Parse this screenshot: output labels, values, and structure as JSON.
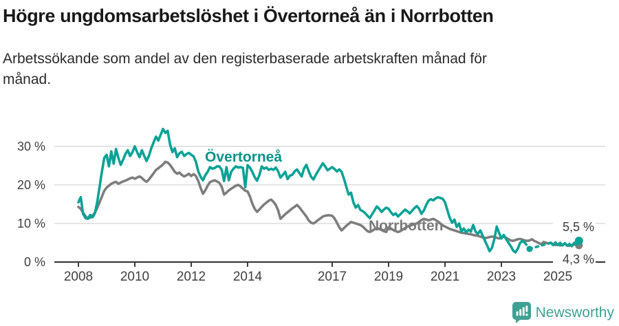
{
  "header": {
    "title": "Högre ungdomsarbetslöshet i Övertorneå än i Norrbotten",
    "subtitle_lines": [
      "Arbetssökande som andel av den registerbaserade arbetskraften månad för",
      "månad."
    ]
  },
  "chart_data": {
    "type": "line",
    "frequency": "monthly",
    "x_start": "2008-01",
    "x_end": "2025-10",
    "x_tick_years": [
      2008,
      2010,
      2012,
      2014,
      2017,
      2019,
      2021,
      2023,
      2025
    ],
    "x_tick_labels": [
      "2008",
      "2010",
      "2012",
      "2014",
      "2017",
      "2019",
      "2021",
      "2023",
      "2025"
    ],
    "y_ticks": [
      0,
      10,
      20,
      30
    ],
    "y_tick_labels": [
      "0 %",
      "10 %",
      "20 %",
      "30 %"
    ],
    "ylim": [
      0,
      36
    ],
    "grid": "horizontal-only",
    "legend": "inline-labels",
    "axis_color": "#3a3a3a",
    "grid_color": "#d9d9d9",
    "series": [
      {
        "name": "Övertorneå",
        "color": "#0aa296",
        "end_label": "5,5 %",
        "last_value": 5.5,
        "values": [
          15.5,
          16.8,
          12.5,
          11.4,
          11.2,
          12.2,
          11.6,
          12.6,
          15.5,
          19.5,
          23.5,
          27.0,
          27.8,
          24.8,
          28.7,
          25.5,
          29.3,
          27.0,
          25.2,
          26.5,
          28.0,
          29.0,
          27.5,
          28.5,
          30.0,
          28.5,
          27.2,
          29.0,
          27.5,
          26.2,
          27.5,
          29.5,
          31.0,
          32.5,
          31.5,
          33.0,
          34.5,
          33.5,
          34.0,
          30.5,
          28.5,
          29.5,
          27.2,
          28.2,
          28.6,
          27.5,
          28.0,
          28.3,
          27.8,
          27.4,
          26.0,
          23.5,
          22.1,
          21.2,
          22.5,
          23.4,
          24.6,
          24.2,
          24.4,
          24.8,
          24.8,
          23.9,
          21.0,
          24.6,
          21.2,
          23.4,
          24.2,
          24.8,
          24.5,
          24.6,
          24.4,
          19.4,
          25.1,
          24.5,
          23.4,
          22.0,
          21.1,
          22.5,
          24.8,
          24.2,
          24.5,
          23.9,
          24.2,
          23.9,
          24.5,
          23.5,
          21.9,
          22.6,
          23.4,
          21.5,
          22.4,
          22.6,
          23.5,
          24.0,
          23.1,
          22.2,
          24.2,
          25.2,
          23.6,
          22.1,
          21.4,
          22.6,
          23.6,
          24.6,
          25.6,
          24.8,
          23.8,
          24.2,
          24.6,
          24.1,
          23.5,
          24.0,
          23.4,
          21.6,
          19.5,
          17.5,
          18.0,
          15.5,
          14.1,
          14.8,
          13.5,
          13.2,
          12.7,
          12.0,
          11.4,
          12.4,
          13.4,
          14.4,
          13.8,
          13.0,
          13.6,
          14.1,
          13.8,
          12.9,
          12.2,
          12.6,
          11.8,
          12.4,
          13.0,
          13.6,
          13.2,
          12.6,
          13.3,
          14.0,
          14.5,
          13.8,
          12.5,
          13.4,
          14.8,
          15.9,
          16.3,
          16.0,
          16.5,
          16.8,
          16.6,
          16.4,
          15.5,
          13.5,
          11.5,
          10.2,
          11.0,
          9.1,
          10.0,
          7.9,
          8.7,
          7.7,
          8.4,
          7.9,
          9.6,
          7.9,
          7.3,
          8.2,
          6.9,
          5.5,
          4.2,
          2.8,
          3.7,
          6.0,
          9.2,
          7.6,
          6.1,
          7.0,
          6.0,
          5.0,
          4.1,
          3.0,
          2.5,
          3.5,
          5.0,
          5.5,
          5.0,
          null,
          3.4,
          null,
          null,
          null,
          null,
          null,
          null,
          null,
          null,
          5.0,
          4.4,
          5.1,
          4.4,
          5.0,
          4.3,
          4.9,
          4.2,
          4.7,
          4.1,
          5.0,
          4.6,
          5.5
        ]
      },
      {
        "name": "Norrbotten",
        "color": "#7d7d7d",
        "end_label": "4,3 %",
        "last_value": 4.3,
        "values": [
          14.3,
          13.8,
          12.8,
          11.9,
          11.3,
          11.5,
          12.0,
          12.8,
          14.0,
          15.5,
          17.0,
          18.5,
          19.3,
          19.8,
          20.3,
          20.6,
          20.8,
          20.3,
          20.6,
          20.9,
          21.1,
          21.4,
          21.7,
          21.9,
          21.6,
          21.9,
          22.2,
          21.8,
          21.2,
          20.8,
          21.4,
          22.2,
          23.0,
          23.9,
          24.3,
          24.8,
          25.3,
          26.0,
          25.8,
          25.2,
          24.3,
          23.4,
          22.9,
          23.2,
          22.6,
          22.2,
          22.5,
          22.9,
          22.3,
          22.8,
          22.3,
          21.0,
          19.2,
          17.7,
          18.6,
          19.8,
          20.7,
          21.0,
          21.2,
          20.9,
          20.5,
          19.5,
          17.5,
          18.0,
          18.6,
          19.0,
          19.4,
          19.8,
          20.0,
          19.6,
          19.0,
          18.5,
          18.3,
          17.0,
          15.2,
          13.8,
          13.0,
          13.6,
          14.3,
          14.9,
          15.4,
          15.9,
          16.2,
          15.6,
          14.8,
          13.4,
          11.2,
          11.8,
          12.4,
          12.9,
          13.4,
          13.9,
          14.3,
          14.8,
          14.2,
          13.4,
          12.6,
          11.8,
          10.8,
          10.2,
          10.0,
          10.4,
          10.9,
          11.3,
          11.8,
          12.0,
          12.1,
          12.1,
          12.0,
          11.3,
          10.2,
          9.0,
          8.2,
          8.8,
          9.4,
          9.9,
          10.4,
          10.2,
          10.0,
          9.8,
          9.6,
          9.2,
          8.6,
          8.0,
          7.8,
          8.1,
          8.5,
          8.8,
          8.6,
          8.3,
          8.0,
          7.8,
          9.0,
          8.7,
          8.3,
          8.0,
          7.8,
          8.0,
          8.4,
          8.8,
          9.2,
          9.4,
          9.6,
          9.8,
          10.0,
          10.4,
          10.9,
          11.2,
          11.0,
          10.8,
          11.0,
          11.2,
          10.9,
          10.5,
          10.0,
          9.5,
          9.2,
          8.9,
          8.6,
          8.4,
          8.2,
          8.0,
          7.8,
          7.6,
          7.5,
          7.4,
          7.3,
          7.2,
          7.0,
          6.9,
          6.8,
          6.6,
          6.4,
          6.2,
          6.3,
          6.5,
          6.6,
          6.5,
          6.3,
          6.1,
          6.4,
          6.6,
          6.3,
          5.9,
          5.6,
          5.5,
          5.7,
          5.9,
          6.0,
          5.8,
          5.6,
          5.5,
          5.6,
          5.9,
          5.5,
          5.2,
          4.9,
          4.6,
          5.2,
          5.0,
          4.8,
          5.0,
          4.6,
          4.4,
          4.6,
          4.3,
          4.5,
          4.7,
          4.4,
          4.2,
          4.4,
          4.6,
          4.4,
          4.3
        ]
      }
    ]
  },
  "footer": {
    "brand": "Newsworthy",
    "logo_icon": "newsworthy-speech-bubble-bar-chart-icon",
    "brand_color": "#3fa093"
  }
}
